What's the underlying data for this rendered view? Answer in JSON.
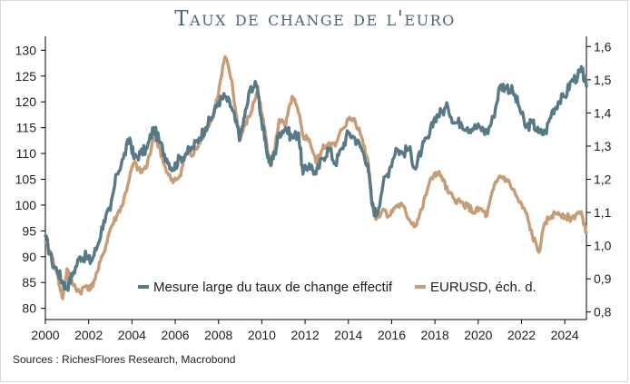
{
  "title": "Taux de change de l'euro",
  "source": "Sources : RichesFlores Research, Macrobond",
  "colors": {
    "effective": "#587a87",
    "eurusd": "#c79d77",
    "axis": "#000000",
    "text": "#1f1f1f"
  },
  "chart_data": {
    "type": "line",
    "title": "Taux de change de l'euro",
    "x_range": [
      2000,
      2025
    ],
    "x_ticks": [
      "2000",
      "2002",
      "2004",
      "2006",
      "2008",
      "2010",
      "2012",
      "2014",
      "2016",
      "2018",
      "2020",
      "2022",
      "2024"
    ],
    "y_left": {
      "range": [
        78,
        132
      ],
      "ticks": [
        "80",
        "85",
        "90",
        "95",
        "100",
        "105",
        "110",
        "115",
        "120",
        "125",
        "130"
      ]
    },
    "y_right": {
      "range": [
        0.78,
        1.62
      ],
      "ticks": [
        "0,8",
        "0,9",
        "1,0",
        "1,1",
        "1,2",
        "1,3",
        "1,4",
        "1,5",
        "1,6"
      ]
    },
    "grid": false,
    "legend_position": "bottom-right inside plot",
    "series": [
      {
        "name": "Mesure large du taux de change effectif",
        "axis": "left",
        "x": [
          2000.0,
          2000.3,
          2000.6,
          2000.8,
          2001.0,
          2001.3,
          2001.6,
          2001.9,
          2002.1,
          2002.4,
          2002.7,
          2003.0,
          2003.3,
          2003.6,
          2003.9,
          2004.1,
          2004.4,
          2004.7,
          2005.0,
          2005.3,
          2005.6,
          2005.9,
          2006.2,
          2006.5,
          2006.8,
          2007.1,
          2007.4,
          2007.7,
          2008.0,
          2008.3,
          2008.6,
          2008.8,
          2009.0,
          2009.2,
          2009.5,
          2009.8,
          2010.0,
          2010.2,
          2010.4,
          2010.6,
          2010.8,
          2011.1,
          2011.4,
          2011.7,
          2011.9,
          2012.2,
          2012.5,
          2012.8,
          2013.1,
          2013.4,
          2013.7,
          2014.0,
          2014.3,
          2014.6,
          2014.9,
          2015.1,
          2015.3,
          2015.6,
          2015.9,
          2016.2,
          2016.5,
          2016.8,
          2017.1,
          2017.4,
          2017.7,
          2018.0,
          2018.3,
          2018.6,
          2018.9,
          2019.2,
          2019.5,
          2019.8,
          2020.1,
          2020.4,
          2020.7,
          2021.0,
          2021.3,
          2021.6,
          2021.9,
          2022.2,
          2022.5,
          2022.8,
          2023.1,
          2023.4,
          2023.7,
          2024.0,
          2024.3,
          2024.6,
          2024.8,
          2025.0
        ],
        "values": [
          94,
          89,
          87,
          85,
          84,
          87,
          90,
          90,
          89,
          92,
          97,
          99,
          106,
          109,
          113,
          109,
          110,
          111,
          115,
          112,
          109,
          107,
          109,
          110,
          111,
          113,
          115,
          117,
          120,
          121,
          119,
          116,
          113,
          117,
          123,
          123,
          116,
          111,
          108,
          110,
          114,
          115,
          113,
          114,
          106,
          108,
          106,
          109,
          111,
          108,
          111,
          114,
          113,
          111,
          108,
          100,
          98,
          104,
          107,
          111,
          110,
          111,
          107,
          111,
          113,
          117,
          118,
          119,
          116,
          116,
          115,
          115,
          115,
          114,
          117,
          123,
          123,
          122,
          119,
          115,
          116,
          114,
          114,
          118,
          120,
          121,
          124,
          125,
          126,
          123
        ]
      },
      {
        "name": "EURUSD, éch. d.",
        "axis": "right",
        "x": [
          2000.0,
          2000.3,
          2000.6,
          2000.8,
          2001.0,
          2001.3,
          2001.6,
          2001.9,
          2002.1,
          2002.4,
          2002.7,
          2003.0,
          2003.3,
          2003.6,
          2003.9,
          2004.1,
          2004.4,
          2004.7,
          2005.0,
          2005.3,
          2005.6,
          2005.9,
          2006.2,
          2006.5,
          2006.8,
          2007.1,
          2007.4,
          2007.7,
          2008.0,
          2008.3,
          2008.6,
          2008.8,
          2009.0,
          2009.2,
          2009.5,
          2009.8,
          2010.0,
          2010.2,
          2010.4,
          2010.6,
          2010.8,
          2011.1,
          2011.4,
          2011.7,
          2011.9,
          2012.2,
          2012.5,
          2012.8,
          2013.1,
          2013.4,
          2013.7,
          2014.0,
          2014.3,
          2014.6,
          2014.9,
          2015.1,
          2015.3,
          2015.6,
          2015.9,
          2016.2,
          2016.5,
          2016.8,
          2017.1,
          2017.4,
          2017.7,
          2018.0,
          2018.3,
          2018.6,
          2018.9,
          2019.2,
          2019.5,
          2019.8,
          2020.1,
          2020.4,
          2020.7,
          2021.0,
          2021.3,
          2021.6,
          2021.9,
          2022.2,
          2022.5,
          2022.8,
          2023.1,
          2023.4,
          2023.7,
          2024.0,
          2024.3,
          2024.6,
          2024.8,
          2025.0
        ],
        "values": [
          1.01,
          0.97,
          0.9,
          0.84,
          0.93,
          0.88,
          0.86,
          0.88,
          0.87,
          0.92,
          0.98,
          1.05,
          1.09,
          1.13,
          1.21,
          1.25,
          1.22,
          1.24,
          1.33,
          1.29,
          1.22,
          1.19,
          1.21,
          1.28,
          1.27,
          1.31,
          1.35,
          1.38,
          1.46,
          1.57,
          1.5,
          1.4,
          1.32,
          1.36,
          1.4,
          1.47,
          1.4,
          1.32,
          1.24,
          1.29,
          1.38,
          1.36,
          1.45,
          1.4,
          1.33,
          1.32,
          1.25,
          1.29,
          1.31,
          1.3,
          1.35,
          1.38,
          1.38,
          1.33,
          1.26,
          1.12,
          1.08,
          1.11,
          1.09,
          1.12,
          1.12,
          1.08,
          1.06,
          1.11,
          1.18,
          1.22,
          1.21,
          1.16,
          1.14,
          1.13,
          1.12,
          1.1,
          1.11,
          1.09,
          1.17,
          1.21,
          1.2,
          1.17,
          1.13,
          1.1,
          1.03,
          0.98,
          1.07,
          1.09,
          1.1,
          1.09,
          1.08,
          1.1,
          1.09,
          1.04
        ]
      }
    ]
  }
}
